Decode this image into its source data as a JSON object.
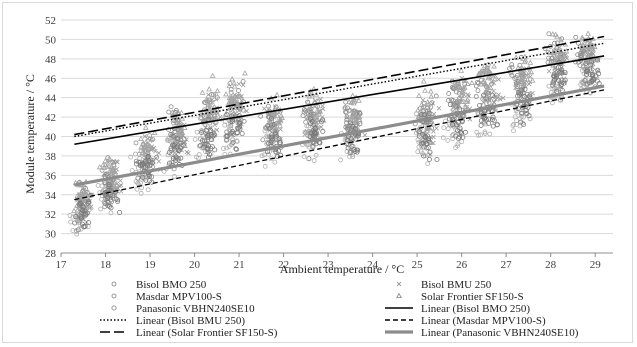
{
  "chart_data": {
    "type": "scatter",
    "title": "",
    "xlabel": "Ambient temperature / °C",
    "ylabel": "Module temperature / °C",
    "xlim": [
      17,
      29.4
    ],
    "ylim": [
      28,
      52
    ],
    "xticks": [
      "17",
      "18",
      "19",
      "20",
      "21",
      "22",
      "23",
      "24",
      "25",
      "26",
      "27",
      "28",
      "29"
    ],
    "yticks": [
      "28",
      "30",
      "32",
      "34",
      "36",
      "38",
      "40",
      "42",
      "44",
      "46",
      "48",
      "50",
      "52"
    ],
    "grid": "horizontal",
    "legend_position": "bottom",
    "series": [
      {
        "name": "Bisol BMO 250",
        "marker": "circle",
        "color": "#8c8c8c",
        "clusters": [
          [
            17.5,
            33.2,
            2.8
          ],
          [
            18.1,
            35.5,
            3.2
          ],
          [
            18.9,
            38.0,
            3.0
          ],
          [
            19.6,
            40.5,
            3.2
          ],
          [
            20.3,
            42.5,
            3.5
          ],
          [
            20.9,
            43.5,
            3.5
          ],
          [
            21.7,
            41.5,
            3.0
          ],
          [
            22.6,
            42.0,
            3.2
          ],
          [
            23.5,
            41.8,
            3.0
          ],
          [
            25.2,
            42.0,
            4.5
          ],
          [
            25.9,
            44.0,
            3.5
          ],
          [
            26.5,
            45.0,
            3.2
          ],
          [
            27.3,
            46.0,
            3.0
          ],
          [
            28.1,
            48.0,
            3.0
          ],
          [
            28.7,
            48.5,
            2.8
          ]
        ]
      },
      {
        "name": "Bisol BMU 250",
        "marker": "x",
        "color": "#9a9a9a",
        "clusters": [
          [
            17.5,
            32.8,
            2.6
          ],
          [
            18.2,
            35.2,
            3.0
          ],
          [
            19.0,
            37.8,
            3.0
          ],
          [
            19.7,
            40.0,
            3.2
          ],
          [
            20.4,
            42.0,
            3.4
          ],
          [
            21.0,
            43.0,
            3.4
          ],
          [
            21.8,
            41.2,
            3.0
          ],
          [
            22.7,
            41.5,
            3.2
          ],
          [
            23.6,
            41.2,
            3.0
          ],
          [
            25.3,
            41.5,
            4.3
          ],
          [
            26.0,
            43.5,
            3.4
          ],
          [
            26.7,
            44.6,
            3.2
          ],
          [
            27.4,
            45.5,
            3.0
          ],
          [
            28.2,
            47.5,
            3.0
          ],
          [
            28.9,
            48.0,
            2.8
          ]
        ]
      },
      {
        "name": "Masdar MPV100-S",
        "marker": "circle",
        "color": "#b0b0b0",
        "clusters": [
          [
            17.4,
            31.5,
            2.4
          ],
          [
            18.0,
            33.8,
            3.0
          ],
          [
            18.8,
            36.0,
            3.0
          ],
          [
            19.5,
            38.0,
            3.2
          ],
          [
            20.2,
            39.5,
            3.2
          ],
          [
            20.8,
            40.2,
            3.2
          ],
          [
            21.7,
            39.0,
            2.8
          ],
          [
            22.6,
            39.5,
            3.0
          ],
          [
            23.5,
            39.6,
            2.8
          ],
          [
            25.1,
            39.5,
            4.0
          ],
          [
            25.8,
            41.0,
            3.4
          ],
          [
            26.5,
            42.0,
            3.2
          ],
          [
            27.3,
            43.0,
            3.0
          ],
          [
            28.1,
            45.5,
            3.0
          ],
          [
            28.8,
            46.0,
            2.8
          ]
        ]
      },
      {
        "name": "Solar Frontier SF150-S",
        "marker": "triangle",
        "color": "#a5a5a5",
        "clusters": [
          [
            17.5,
            33.8,
            2.8
          ],
          [
            18.1,
            36.0,
            3.2
          ],
          [
            18.9,
            38.5,
            3.0
          ],
          [
            19.6,
            41.0,
            3.2
          ],
          [
            20.3,
            43.2,
            3.5
          ],
          [
            20.9,
            44.2,
            3.5
          ],
          [
            21.8,
            42.0,
            3.0
          ],
          [
            22.7,
            42.5,
            3.2
          ],
          [
            23.6,
            42.2,
            3.0
          ],
          [
            25.2,
            42.5,
            4.5
          ],
          [
            26.0,
            44.5,
            3.5
          ],
          [
            26.6,
            45.5,
            3.2
          ],
          [
            27.4,
            46.5,
            3.0
          ],
          [
            28.2,
            48.6,
            3.0
          ],
          [
            28.8,
            49.0,
            2.8
          ]
        ]
      },
      {
        "name": "Panasonic VBHN240SE10",
        "marker": "circle-open",
        "color": "#7a7a7a",
        "clusters": [
          [
            17.5,
            32.0,
            2.4
          ],
          [
            18.1,
            34.0,
            3.0
          ],
          [
            18.9,
            36.5,
            3.0
          ],
          [
            19.6,
            38.5,
            3.2
          ],
          [
            20.3,
            40.0,
            3.2
          ],
          [
            20.9,
            40.8,
            3.2
          ],
          [
            21.8,
            39.5,
            2.8
          ],
          [
            22.7,
            40.0,
            3.0
          ],
          [
            23.6,
            40.0,
            2.8
          ],
          [
            25.2,
            40.0,
            4.0
          ],
          [
            25.9,
            41.5,
            3.4
          ],
          [
            26.6,
            42.5,
            3.2
          ],
          [
            27.4,
            43.5,
            3.0
          ],
          [
            28.2,
            46.0,
            3.0
          ],
          [
            28.9,
            46.5,
            2.8
          ]
        ]
      }
    ],
    "trendlines": [
      {
        "name": "Linear (Bisol BMO 250)",
        "style": "solid",
        "width": 1.6,
        "color": "#000000",
        "x": [
          17.3,
          29.2
        ],
        "y": [
          39.2,
          48.3
        ]
      },
      {
        "name": "Linear (Bisol BMU 250)",
        "style": "dotted",
        "width": 1.4,
        "color": "#000000",
        "x": [
          17.3,
          29.2
        ],
        "y": [
          40.0,
          49.6
        ]
      },
      {
        "name": "Linear (Masdar MPV100-S)",
        "style": "dashed",
        "width": 1.3,
        "color": "#000000",
        "x": [
          17.3,
          29.2
        ],
        "y": [
          33.5,
          44.8
        ]
      },
      {
        "name": "Linear (Solar Frontier SF150-S)",
        "style": "longdash",
        "width": 1.6,
        "color": "#000000",
        "x": [
          17.3,
          29.2
        ],
        "y": [
          40.2,
          50.3
        ]
      },
      {
        "name": "Linear (Panasonic VBHN240SE10)",
        "style": "solid",
        "width": 3.2,
        "color": "#8c8c8c",
        "x": [
          17.3,
          29.2
        ],
        "y": [
          35.0,
          45.2
        ]
      }
    ]
  },
  "legend": {
    "items": [
      {
        "label": "Bisol BMO 250",
        "kind": "marker",
        "symbol": "circle"
      },
      {
        "label": "Bisol BMU 250",
        "kind": "marker",
        "symbol": "x"
      },
      {
        "label": "Masdar MPV100-S",
        "kind": "marker",
        "symbol": "circle"
      },
      {
        "label": "Solar Frontier SF150-S",
        "kind": "marker",
        "symbol": "triangle"
      },
      {
        "label": "Panasonic VBHN240SE10",
        "kind": "marker",
        "symbol": "circle-open"
      },
      {
        "label": "Linear (Bisol BMO 250)",
        "kind": "line",
        "style": "solid"
      },
      {
        "label": "Linear (Bisol BMU 250)",
        "kind": "line",
        "style": "dotted"
      },
      {
        "label": "Linear (Masdar MPV100-S)",
        "kind": "line",
        "style": "dashed"
      },
      {
        "label": "Linear (Solar Frontier SF150-S)",
        "kind": "line",
        "style": "longdash"
      },
      {
        "label": "Linear (Panasonic VBHN240SE10)",
        "kind": "line",
        "style": "thick-gray"
      }
    ]
  }
}
